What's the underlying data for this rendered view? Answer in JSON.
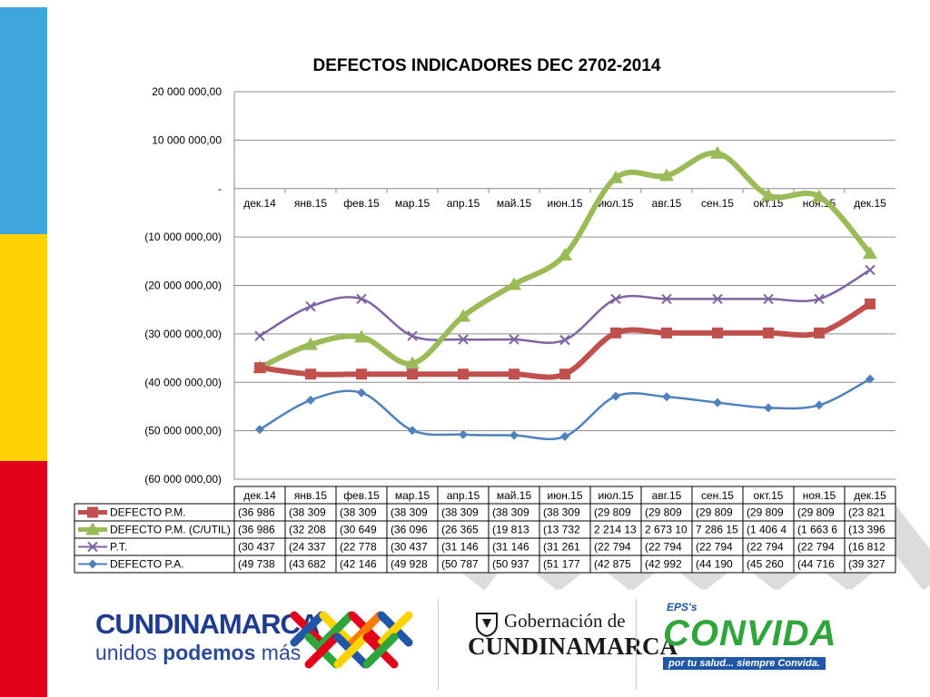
{
  "chart_data": {
    "type": "line",
    "title": "DEFECTOS INDICADORES DEC 2702-2014",
    "categories": [
      "дек.14",
      "янв.15",
      "фев.15",
      "мар.15",
      "апр.15",
      "май.15",
      "июн.15",
      "июл.15",
      "авг.15",
      "сен.15",
      "окт.15",
      "ноя.15",
      "дек.15"
    ],
    "ylim": [
      -60000000,
      20000000
    ],
    "yticks": [
      20000000,
      10000000,
      0,
      -10000000,
      -20000000,
      -30000000,
      -40000000,
      -50000000,
      -60000000
    ],
    "ytick_labels": [
      "20 000 000,00",
      "10 000 000,00",
      "-",
      "(10 000 000,00)",
      "(20 000 000,00)",
      "(30 000 000,00)",
      "(40 000 000,00)",
      "(50 000 000,00)",
      "(60 000 000,00)"
    ],
    "grid": true,
    "legend": "data-table-below",
    "series": [
      {
        "name": "DEFECTO P.M.",
        "color": "#c0504d",
        "marker": "square",
        "values": [
          -36986000,
          -38309000,
          -38309000,
          -38309000,
          -38309000,
          -38309000,
          -38309000,
          -29809000,
          -29809000,
          -29809000,
          -29809000,
          -29809000,
          -23821000
        ],
        "table": [
          "(36 986",
          "(38 309",
          "(38 309",
          "(38 309",
          "(38 309",
          "(38 309",
          "(38 309",
          "(29 809",
          "(29 809",
          "(29 809",
          "(29 809",
          "(29 809",
          "(23 821"
        ]
      },
      {
        "name": "DEFECTO P.M. (C/UTIL)",
        "color": "#9bbb59",
        "marker": "triangle",
        "values": [
          -36986000,
          -32208000,
          -30649000,
          -36096000,
          -26365000,
          -19813000,
          -13732000,
          2214130,
          2673100,
          7286150,
          -1406400,
          -1663600,
          -13396000
        ],
        "table": [
          "(36 986",
          "(32 208",
          "(30 649",
          "(36 096",
          "(26 365",
          "(19 813",
          "(13 732",
          "2 214 13",
          "2 673 10",
          "7 286 15",
          "(1 406 4",
          "(1 663 6",
          "(13 396"
        ]
      },
      {
        "name": "P.T.",
        "color": "#8064a2",
        "marker": "x",
        "values": [
          -30437000,
          -24337000,
          -22778000,
          -30437000,
          -31146000,
          -31146000,
          -31261000,
          -22794000,
          -22794000,
          -22794000,
          -22794000,
          -22794000,
          -16812000
        ],
        "table": [
          "(30 437",
          "(24 337",
          "(22 778",
          "(30 437",
          "(31 146",
          "(31 146",
          "(31 261",
          "(22 794",
          "(22 794",
          "(22 794",
          "(22 794",
          "(22 794",
          "(16 812"
        ]
      },
      {
        "name": "DEFECTO P.A.",
        "color": "#4f81bd",
        "marker": "diamond",
        "values": [
          -49738000,
          -43682000,
          -42146000,
          -49928000,
          -50787000,
          -50937000,
          -51177000,
          -42875000,
          -42992000,
          -44190000,
          -45260000,
          -44716000,
          -39327000
        ],
        "table": [
          "(49 738",
          "(43 682",
          "(42 146",
          "(49 928",
          "(50 787",
          "(50 937",
          "(51 177",
          "(42 875",
          "(42 992",
          "(44 190",
          "(45 260",
          "(44 716",
          "(39 327"
        ]
      }
    ]
  },
  "footer": {
    "cundinamarca": "CUNDINAMARCA",
    "slogan_a": "unidos",
    "slogan_b": "podemos",
    "slogan_c": "más",
    "gob_line1": "Gobernación de",
    "gob_line2": "CUNDINAMARCA",
    "eps": "EPS's",
    "convida": "CONVIDA",
    "convida_sub": "por tu salud... siempre Convida."
  }
}
